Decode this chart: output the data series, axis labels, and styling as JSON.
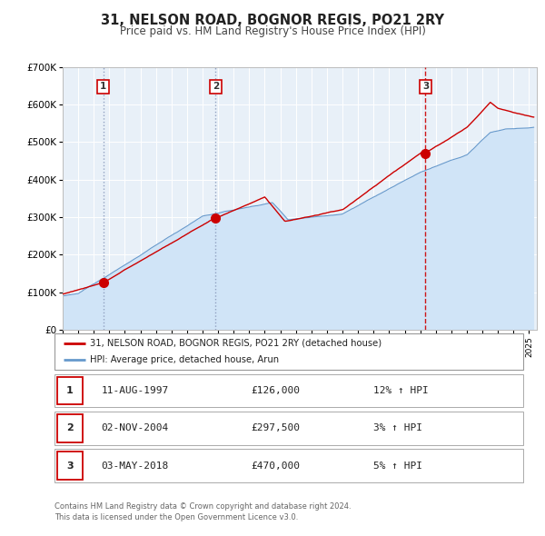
{
  "title": "31, NELSON ROAD, BOGNOR REGIS, PO21 2RY",
  "subtitle": "Price paid vs. HM Land Registry's House Price Index (HPI)",
  "hpi_fill_color": "#d0e4f7",
  "hpi_line_color": "#6699cc",
  "price_color": "#cc0000",
  "marker_color": "#cc0000",
  "bg_color": "#e8f0f8",
  "grid_color": "#ffffff",
  "ylim": [
    0,
    700000
  ],
  "yticks": [
    0,
    100000,
    200000,
    300000,
    400000,
    500000,
    600000,
    700000
  ],
  "transactions": [
    {
      "date": 1997.61,
      "price": 126000,
      "label": "1",
      "vline_style": "dotted",
      "vline_color": "#8899bb"
    },
    {
      "date": 2004.84,
      "price": 297500,
      "label": "2",
      "vline_style": "dotted",
      "vline_color": "#8899bb"
    },
    {
      "date": 2018.34,
      "price": 470000,
      "label": "3",
      "vline_style": "dashed",
      "vline_color": "#cc0000"
    }
  ],
  "legend_entries": [
    "31, NELSON ROAD, BOGNOR REGIS, PO21 2RY (detached house)",
    "HPI: Average price, detached house, Arun"
  ],
  "table_rows": [
    {
      "num": "1",
      "date": "11-AUG-1997",
      "price": "£126,000",
      "hpi": "12% ↑ HPI"
    },
    {
      "num": "2",
      "date": "02-NOV-2004",
      "price": "£297,500",
      "hpi": "3% ↑ HPI"
    },
    {
      "num": "3",
      "date": "03-MAY-2018",
      "price": "£470,000",
      "hpi": "5% ↑ HPI"
    }
  ],
  "footer": "Contains HM Land Registry data © Crown copyright and database right 2024.\nThis data is licensed under the Open Government Licence v3.0.",
  "xmin": 1995.0,
  "xmax": 2025.5
}
